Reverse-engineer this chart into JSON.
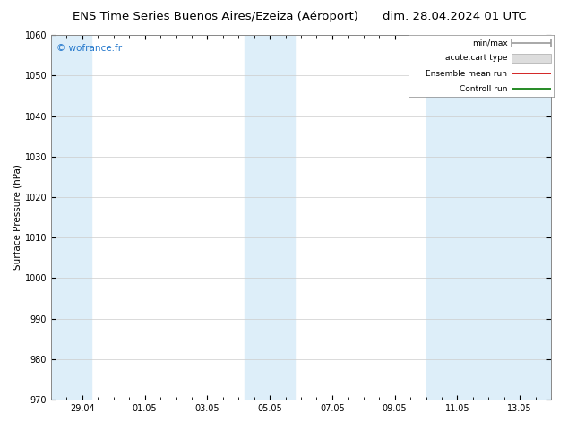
{
  "title_left": "ENS Time Series Buenos Aires/Ezeiza (Aéroport)",
  "title_right": "dim. 28.04.2024 01 UTC",
  "ylabel": "Surface Pressure (hPa)",
  "ylim": [
    970,
    1060
  ],
  "yticks": [
    970,
    980,
    990,
    1000,
    1010,
    1020,
    1030,
    1040,
    1050,
    1060
  ],
  "xtick_labels": [
    "29.04",
    "01.05",
    "03.05",
    "05.05",
    "07.05",
    "09.05",
    "11.05",
    "13.05"
  ],
  "xtick_positions": [
    1,
    3,
    5,
    7,
    9,
    11,
    13,
    15
  ],
  "xlim": [
    0,
    16
  ],
  "shaded_bands": [
    {
      "xmin": 0.0,
      "xmax": 1.3
    },
    {
      "xmin": 6.2,
      "xmax": 7.8
    },
    {
      "xmin": 12.0,
      "xmax": 16.0
    }
  ],
  "light_band_color": "#ddeef9",
  "watermark": "© wofrance.fr",
  "watermark_color": "#2277cc",
  "legend_entries": [
    {
      "label": "min/max",
      "color": "#999999",
      "lw": 1.2
    },
    {
      "label": "acute;cart type",
      "color": "#bbbbbb",
      "lw": 5
    },
    {
      "label": "Ensemble mean run",
      "color": "#cc0000",
      "lw": 1.0
    },
    {
      "label": "Controll run",
      "color": "#007700",
      "lw": 1.0
    }
  ],
  "background_color": "#ffffff",
  "plot_bg_color": "#ffffff",
  "grid_color": "#cccccc",
  "title_fontsize": 9.5,
  "axis_fontsize": 7.5,
  "tick_fontsize": 7,
  "legend_fontsize": 6.5
}
